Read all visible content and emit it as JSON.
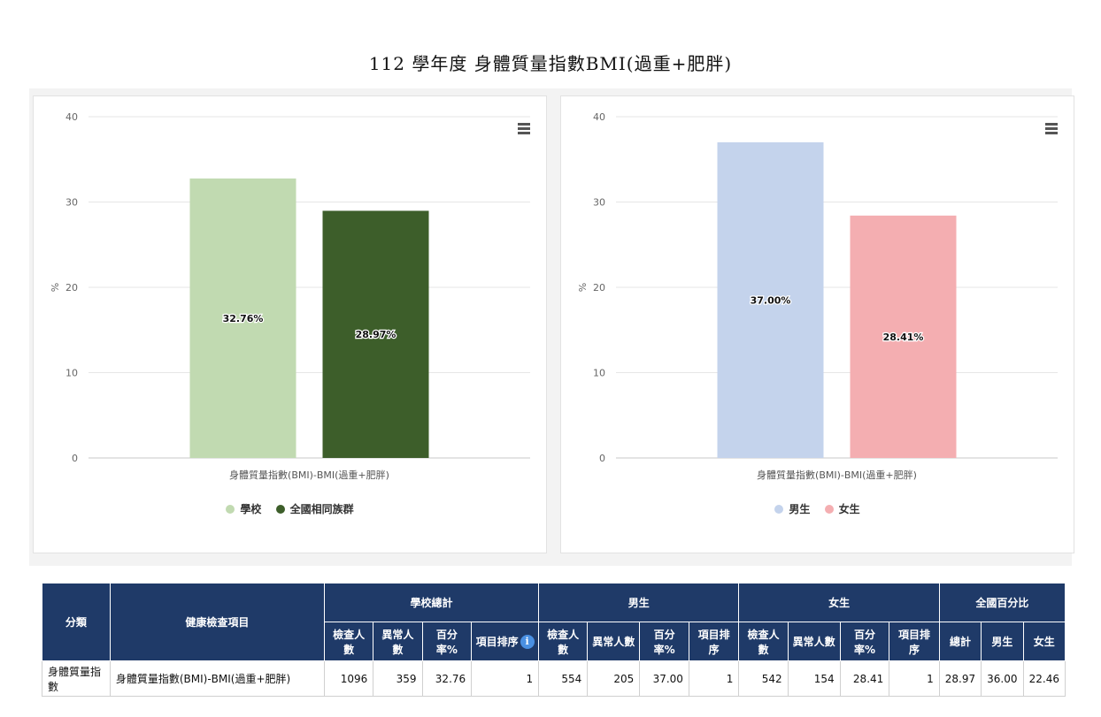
{
  "page": {
    "title": "112 學年度 身體質量指數BMI(過重+肥胖)"
  },
  "chart_data": [
    {
      "type": "bar",
      "categories": [
        "身體質量指數(BMI)-BMI(過重+肥胖)"
      ],
      "series": [
        {
          "name": "學校",
          "values": [
            32.76
          ],
          "color": "#c1dab1",
          "label": "32.76%"
        },
        {
          "name": "全國相同族群",
          "values": [
            28.97
          ],
          "color": "#3d5e2a",
          "label": "28.97%"
        }
      ],
      "ylabel": "%",
      "ylim": [
        0,
        40
      ],
      "yticks": [
        "0",
        "10",
        "20",
        "30",
        "40"
      ],
      "legend": "bottom",
      "grid": true
    },
    {
      "type": "bar",
      "categories": [
        "身體質量指數(BMI)-BMI(過重+肥胖)"
      ],
      "series": [
        {
          "name": "男生",
          "values": [
            37.0
          ],
          "color": "#c4d3ec",
          "label": "37.00%"
        },
        {
          "name": "女生",
          "values": [
            28.41
          ],
          "color": "#f4aeb1",
          "label": "28.41%"
        }
      ],
      "ylabel": "%",
      "ylim": [
        0,
        40
      ],
      "yticks": [
        "0",
        "10",
        "20",
        "30",
        "40"
      ],
      "legend": "bottom",
      "grid": true
    }
  ],
  "table": {
    "headers": {
      "category": "分類",
      "item": "健康檢查項目",
      "school_total": "學校總計",
      "male": "男生",
      "female": "女生",
      "national": "全國百分比",
      "examined": "檢查人數",
      "abnormal": "異常人數",
      "percent": "百分率%",
      "rank": "項目排序",
      "total": "總計",
      "male_short": "男生",
      "female_short": "女生",
      "info_icon": "i"
    },
    "row": {
      "category": "身體質量指數",
      "item": "身體質量指數(BMI)-BMI(過重+肥胖)",
      "school_examined": "1096",
      "school_abnormal": "359",
      "school_percent": "32.76",
      "school_rank": "1",
      "male_examined": "554",
      "male_abnormal": "205",
      "male_percent": "37.00",
      "male_rank": "1",
      "female_examined": "542",
      "female_abnormal": "154",
      "female_percent": "28.41",
      "female_rank": "1",
      "national_total": "28.97",
      "national_male": "36.00",
      "national_female": "22.46"
    }
  }
}
